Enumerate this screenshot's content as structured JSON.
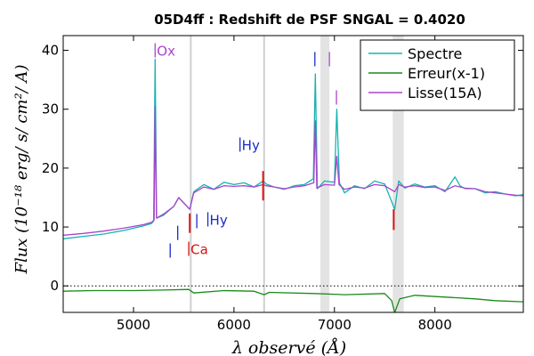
{
  "chart_data": {
    "type": "line",
    "title": "05D4ff : Redshift de PSF SNGAL = 0.4020",
    "xlabel": "λ observé (Å)",
    "ylabel": "Flux (10⁻¹⁸ erg/ s/ cm²/ A)",
    "xlim": [
      4300,
      8880
    ],
    "ylim": [
      -4.5,
      42.5
    ],
    "xticks": [
      5000,
      6000,
      7000,
      8000
    ],
    "yticks": [
      0,
      10,
      20,
      30,
      40
    ],
    "grid": false,
    "legend_position": "top-right",
    "series": [
      {
        "name": "Spectre",
        "color": "#17b2b2",
        "x": [
          4300,
          4500,
          4700,
          4900,
          5100,
          5180,
          5200,
          5215,
          5230,
          5300,
          5400,
          5450,
          5560,
          5600,
          5700,
          5800,
          5900,
          6000,
          6100,
          6200,
          6290,
          6320,
          6400,
          6500,
          6600,
          6700,
          6790,
          6810,
          6830,
          6900,
          7000,
          7023,
          7050,
          7100,
          7200,
          7300,
          7400,
          7500,
          7600,
          7640,
          7700,
          7800,
          7900,
          8000,
          8100,
          8200,
          8250,
          8300,
          8400,
          8500,
          8600,
          8700,
          8800,
          8880
        ],
        "y": [
          8,
          8.4,
          8.8,
          9.4,
          10.2,
          10.6,
          11,
          38.5,
          11.5,
          12,
          13.5,
          15,
          13,
          16,
          17.2,
          16.4,
          17.6,
          17.2,
          17.5,
          16.8,
          17.8,
          17.3,
          16.8,
          16.4,
          17,
          17.2,
          18.2,
          36,
          16.5,
          17.8,
          17.6,
          30,
          17.5,
          15.8,
          17,
          16.5,
          17.8,
          17.3,
          13,
          17.8,
          16.6,
          17.3,
          16.8,
          17,
          16,
          18.5,
          17,
          16.5,
          16.5,
          15.8,
          16,
          15.6,
          15.3,
          15.5
        ]
      },
      {
        "name": "Erreur(x-1)",
        "color": "#1a8a1a",
        "x": [
          4300,
          4600,
          5000,
          5300,
          5550,
          5600,
          5900,
          6200,
          6300,
          6350,
          6800,
          7100,
          7500,
          7570,
          7600,
          7650,
          7800,
          8100,
          8400,
          8600,
          8880
        ],
        "y": [
          -0.9,
          -0.8,
          -0.8,
          -0.7,
          -0.6,
          -1.2,
          -0.8,
          -0.9,
          -1.5,
          -1.1,
          -1.3,
          -1.5,
          -1.3,
          -2.5,
          -4.5,
          -2.2,
          -1.6,
          -1.9,
          -2.2,
          -2.5,
          -2.7
        ]
      },
      {
        "name": "Lisse(15A)",
        "color": "#aa44cc",
        "x": [
          4300,
          4500,
          4700,
          4900,
          5100,
          5180,
          5205,
          5215,
          5228,
          5300,
          5400,
          5450,
          5560,
          5600,
          5700,
          5800,
          5900,
          6000,
          6100,
          6200,
          6290,
          6320,
          6400,
          6500,
          6600,
          6700,
          6795,
          6810,
          6825,
          6900,
          7000,
          7023,
          7045,
          7100,
          7200,
          7300,
          7400,
          7500,
          7600,
          7640,
          7700,
          7800,
          7900,
          8000,
          8100,
          8200,
          8300,
          8400,
          8500,
          8600,
          8700,
          8800,
          8880
        ],
        "y": [
          8.6,
          8.9,
          9.3,
          9.8,
          10.4,
          10.8,
          11.2,
          30.5,
          11.5,
          12.2,
          13.5,
          15,
          13,
          15.8,
          16.8,
          16.4,
          17,
          16.9,
          17,
          16.8,
          17.2,
          17,
          16.8,
          16.5,
          16.8,
          17,
          17.5,
          28,
          16.6,
          17.2,
          17.1,
          22,
          17.2,
          16.4,
          16.8,
          16.6,
          17.2,
          17,
          16,
          17.2,
          16.8,
          17,
          16.7,
          16.8,
          16.2,
          17,
          16.6,
          16.5,
          16,
          15.8,
          15.6,
          15.4,
          15.3
        ]
      }
    ],
    "red_segments": [
      {
        "x": 5560,
        "y1": 12.3,
        "y2": 9
      },
      {
        "x": 6290,
        "y1": 19.5,
        "y2": 14.5
      },
      {
        "x": 7590,
        "y1": 13,
        "y2": 9.5
      }
    ],
    "shaded_bands": [
      {
        "x0": 6860,
        "x1": 6950
      },
      {
        "x0": 7580,
        "x1": 7690
      }
    ],
    "vertical_lines": [
      5570,
      6300
    ],
    "zero_line": 0,
    "annotations": [
      {
        "text": "Ox",
        "x": 5215,
        "y": 40,
        "color": "#aa44cc",
        "tick": true
      },
      {
        "text": "Hy",
        "x": 6060,
        "y": 24,
        "color": "#1a2acc",
        "tick": true
      },
      {
        "text": "Hy",
        "x": 5740,
        "y": 11.3,
        "color": "#1a2acc",
        "tick": true
      },
      {
        "text": "Ca",
        "x": 5550,
        "y": 6.3,
        "color": "#dd1111",
        "tick": true
      },
      {
        "text": "",
        "x": 6805,
        "y": 38.5,
        "color": "#1a2acc",
        "tick": true
      },
      {
        "text": "",
        "x": 6950,
        "y": 38.5,
        "color": "#aa44cc",
        "tick": true
      },
      {
        "text": "",
        "x": 7020,
        "y": 32,
        "color": "#aa44cc",
        "tick": true
      },
      {
        "text": "",
        "x": 5365,
        "y": 6,
        "color": "#1a2acc",
        "tick": true
      },
      {
        "text": "",
        "x": 5440,
        "y": 9,
        "color": "#1a2acc",
        "tick": true
      },
      {
        "text": "",
        "x": 5630,
        "y": 11,
        "color": "#1a2acc",
        "tick": true
      }
    ]
  }
}
